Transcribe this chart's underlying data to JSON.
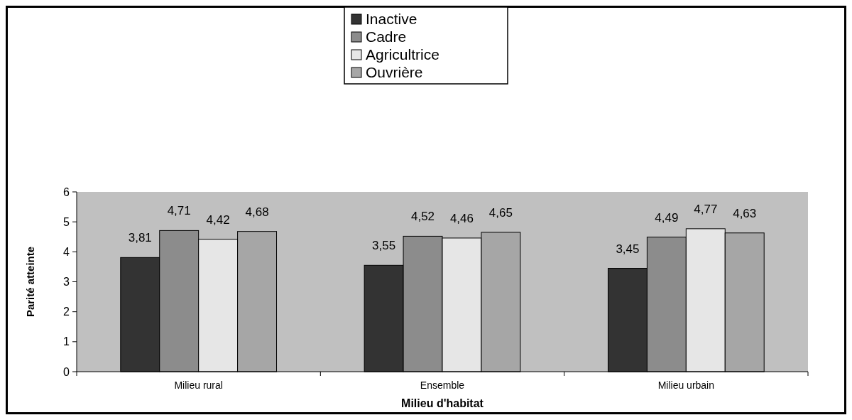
{
  "chart_data": {
    "type": "bar",
    "xlabel": "Milieu d'habitat",
    "ylabel": "Parité atteinte",
    "categories": [
      "Milieu rural",
      "Ensemble",
      "Milieu urbain"
    ],
    "series": [
      {
        "name": "Inactive",
        "color": "#333333",
        "values": [
          3.81,
          3.55,
          3.45
        ],
        "value_labels": [
          "3,81",
          "3,55",
          "3,45"
        ]
      },
      {
        "name": "Cadre",
        "color": "#8c8c8c",
        "values": [
          4.71,
          4.52,
          4.49
        ],
        "value_labels": [
          "4,71",
          "4,52",
          "4,49"
        ]
      },
      {
        "name": "Agricultrice",
        "color": "#e6e6e6",
        "values": [
          4.42,
          4.46,
          4.77
        ],
        "value_labels": [
          "4,42",
          "4,46",
          "4,77"
        ]
      },
      {
        "name": "Ouvrière",
        "color": "#a6a6a6",
        "values": [
          4.68,
          4.65,
          4.63
        ],
        "value_labels": [
          "4,68",
          "4,65",
          "4,63"
        ]
      }
    ],
    "ylim": [
      0,
      6
    ],
    "yticks": [
      0,
      1,
      2,
      3,
      4,
      5,
      6
    ],
    "legend": "top"
  }
}
